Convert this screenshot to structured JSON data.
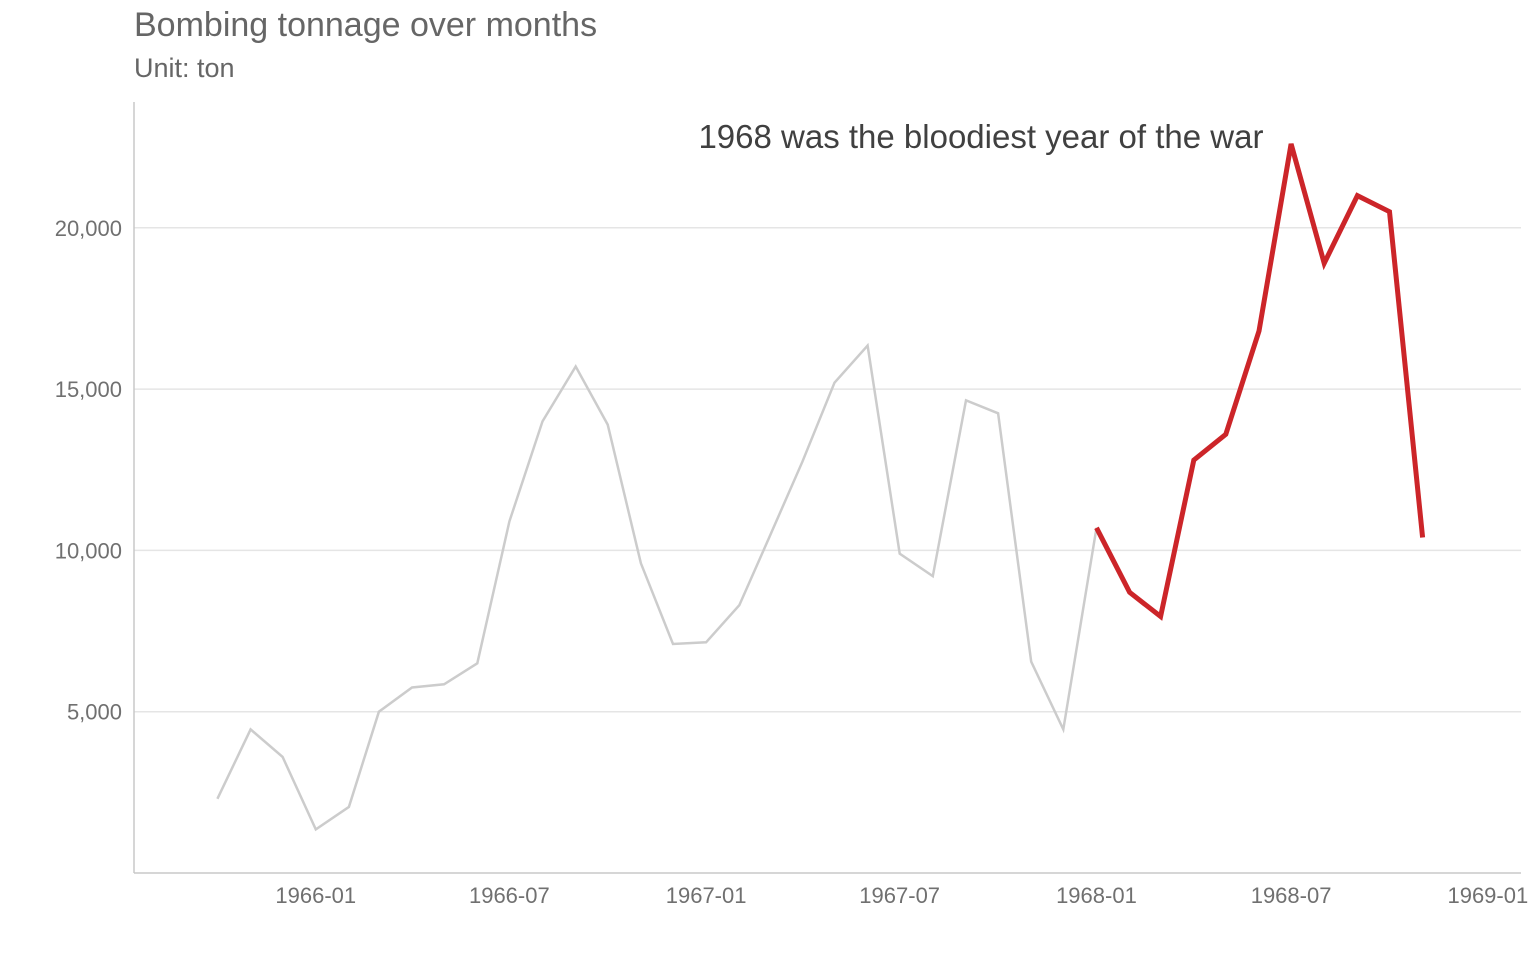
{
  "chart_data": {
    "type": "line",
    "title": "Bombing tonnage over months",
    "subtitle": "Unit: ton",
    "annotation": "1968 was the bloodiest year of the war",
    "xlabel": "",
    "ylabel": "",
    "x_ticks": [
      "1966-01",
      "1966-07",
      "1967-01",
      "1967-07",
      "1968-01",
      "1968-07",
      "1969-01"
    ],
    "y_ticks": [
      5000,
      10000,
      15000,
      20000
    ],
    "y_tick_labels": [
      "5,000",
      "10,000",
      "15,000",
      "20,000"
    ],
    "xlim": [
      "1965-07-15",
      "1969-02-01"
    ],
    "ylim": [
      0,
      23900
    ],
    "grid": "horizontal",
    "colors": {
      "background_series": "#cccccc",
      "highlight_series": "#cc2529",
      "gridline": "#e5e5e5",
      "axis": "#c8c8c8",
      "text": "#666666"
    },
    "series": [
      {
        "highlight": false,
        "x": [
          "1965-10",
          "1965-11",
          "1965-12",
          "1966-01",
          "1966-02",
          "1966-03",
          "1966-04",
          "1966-05",
          "1966-06",
          "1966-07",
          "1966-08",
          "1966-09",
          "1966-10",
          "1966-11",
          "1966-12",
          "1967-01",
          "1967-02",
          "1967-03",
          "1967-04",
          "1967-05",
          "1967-06",
          "1967-07",
          "1967-08",
          "1967-09",
          "1967-10",
          "1967-11",
          "1967-12",
          "1968-01"
        ],
        "values": [
          2300,
          4450,
          3600,
          1350,
          2050,
          5000,
          5750,
          5850,
          6500,
          10900,
          14000,
          15700,
          13900,
          9600,
          7100,
          7150,
          8300,
          10400,
          12750,
          15200,
          16350,
          9900,
          9200,
          14650,
          14250,
          6550,
          4450,
          10700
        ]
      },
      {
        "highlight": true,
        "x": [
          "1968-01",
          "1968-02",
          "1968-03",
          "1968-04",
          "1968-05",
          "1968-06",
          "1968-07",
          "1968-08",
          "1968-09",
          "1968-10",
          "1968-11"
        ],
        "values": [
          10700,
          8700,
          7950,
          12800,
          13600,
          16800,
          22600,
          18900,
          21000,
          20500,
          10400
        ]
      }
    ]
  }
}
